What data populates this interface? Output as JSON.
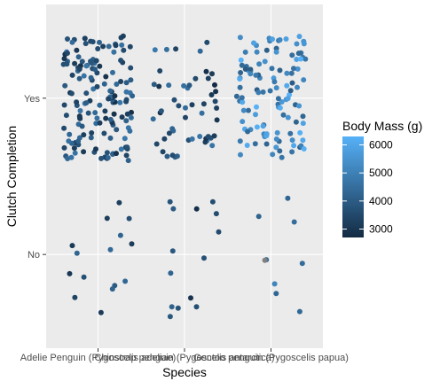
{
  "chart_data": {
    "type": "scatter",
    "title": "",
    "xlabel": "Species",
    "ylabel": "Clutch Completion",
    "categories": [
      "Adelie Penguin (Pygoscelis adeliae)",
      "Chinstrap penguin (Pygoscelis antarctica)",
      "Gentoo penguin (Pygoscelis papua)"
    ],
    "y_levels": [
      "No",
      "Yes"
    ],
    "jitter": {
      "x": 0.4,
      "y": 0.4
    },
    "grid": true,
    "legend": {
      "title": "Body Mass (g)",
      "placement": "right",
      "ticks": [
        3000,
        4000,
        5000,
        6000
      ],
      "range": [
        2700,
        6300
      ],
      "color_low": "#132B43",
      "color_high": "#56B1F7",
      "na_color": "#7f7f7f"
    },
    "series": [
      {
        "category": "Adelie Penguin (Pygoscelis adeliae)",
        "clutch": "Yes",
        "n": 155,
        "body_mass_range": [
          2850,
          4775
        ]
      },
      {
        "category": "Adelie Penguin (Pygoscelis adeliae)",
        "clutch": "No",
        "n": 15,
        "body_mass_range": [
          2900,
          4400
        ]
      },
      {
        "category": "Chinstrap penguin (Pygoscelis antarctica)",
        "clutch": "Yes",
        "n": 52,
        "body_mass_range": [
          2700,
          4800
        ]
      },
      {
        "category": "Chinstrap penguin (Pygoscelis antarctica)",
        "clutch": "No",
        "n": 14,
        "body_mass_range": [
          2700,
          4500
        ]
      },
      {
        "category": "Gentoo penguin (Pygoscelis papua)",
        "clutch": "Yes",
        "n": 115,
        "body_mass_range": [
          3950,
          6300
        ]
      },
      {
        "category": "Gentoo penguin (Pygoscelis papua)",
        "clutch": "No",
        "n": 9,
        "body_mass_range": [
          4200,
          5700
        ],
        "missing_mass": 1
      }
    ]
  }
}
